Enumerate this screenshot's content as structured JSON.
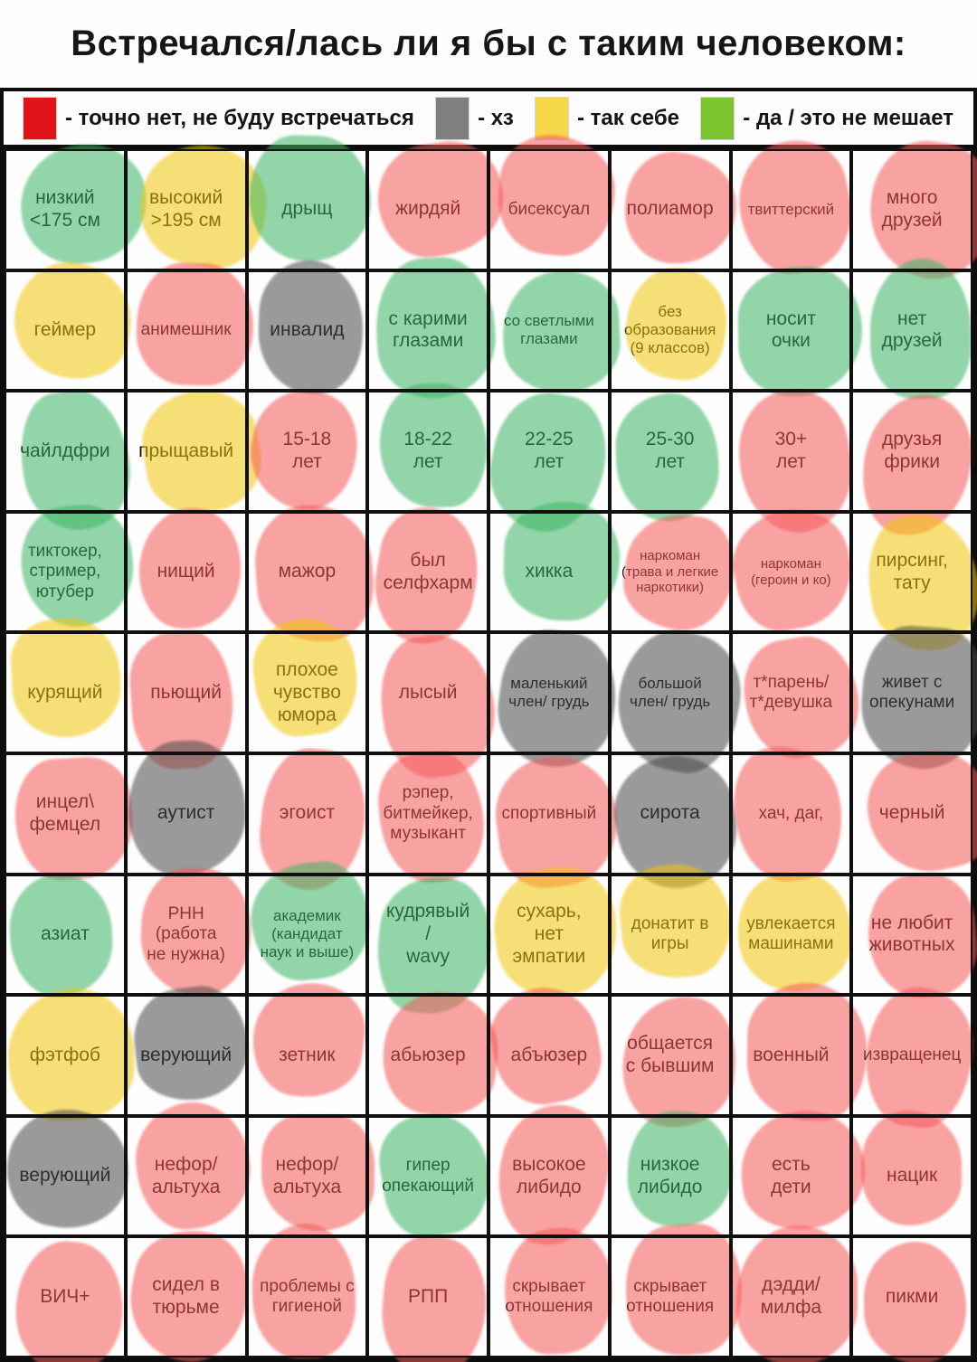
{
  "title": "Встречался/лась ли я бы с таким человеком:",
  "legend": [
    {
      "key": "no",
      "label": "- точно нет, не буду встречаться",
      "color": "#e01418"
    },
    {
      "key": "idk",
      "label": "- хз",
      "color": "#808080"
    },
    {
      "key": "meh",
      "label": "- так себе",
      "color": "#f5d74a"
    },
    {
      "key": "yes",
      "label": "- да / это не мешает",
      "color": "#7cc52f"
    }
  ],
  "verdict_blob_colors": {
    "no": "rgba(246, 88, 88, 0.55)",
    "idk": "rgba(72, 72, 72, 0.55)",
    "meh": "rgba(242, 198, 10, 0.55)",
    "yes": "rgba(58, 180, 98, 0.55)"
  },
  "grid": {
    "columns": 8,
    "rows": 10,
    "cells": [
      {
        "label": "низкий\n<175 см",
        "verdict": "yes"
      },
      {
        "label": "высокий\n>195 см",
        "verdict": "meh"
      },
      {
        "label": "дрыщ",
        "verdict": "yes"
      },
      {
        "label": "жирдяй",
        "verdict": "no"
      },
      {
        "label": "бисексуал",
        "verdict": "no"
      },
      {
        "label": "полиамор",
        "verdict": "no"
      },
      {
        "label": "твиттерский",
        "verdict": "no"
      },
      {
        "label": "много\nдрузей",
        "verdict": "no"
      },
      {
        "label": "геймер",
        "verdict": "meh"
      },
      {
        "label": "анимешник",
        "verdict": "no"
      },
      {
        "label": "инвалид",
        "verdict": "idk"
      },
      {
        "label": "с карими\nглазами",
        "verdict": "yes"
      },
      {
        "label": "со светлыми\nглазами",
        "verdict": "yes"
      },
      {
        "label": "без\nобразования\n(9 классов)",
        "verdict": "meh"
      },
      {
        "label": "носит\nочки",
        "verdict": "yes"
      },
      {
        "label": "нет\nдрузей",
        "verdict": "yes"
      },
      {
        "label": "чайлдфри",
        "verdict": "yes"
      },
      {
        "label": "прыщавый",
        "verdict": "meh"
      },
      {
        "label": "15-18\nлет",
        "verdict": "no"
      },
      {
        "label": "18-22\nлет",
        "verdict": "yes"
      },
      {
        "label": "22-25\nлет",
        "verdict": "yes"
      },
      {
        "label": "25-30\nлет",
        "verdict": "yes"
      },
      {
        "label": "30+\nлет",
        "verdict": "no"
      },
      {
        "label": "друзья\nфрики",
        "verdict": "no"
      },
      {
        "label": "тиктокер,\nстример,\nютубер",
        "verdict": "yes"
      },
      {
        "label": "нищий",
        "verdict": "no"
      },
      {
        "label": "мажор",
        "verdict": "no"
      },
      {
        "label": "был\nселфхарм",
        "verdict": "no"
      },
      {
        "label": "хикка",
        "verdict": "yes"
      },
      {
        "label": "наркоман\n(трава и легкие\nнаркотики)",
        "verdict": "no"
      },
      {
        "label": "наркоман\n(героин и ко)",
        "verdict": "no"
      },
      {
        "label": "пирсинг,\nтату",
        "verdict": "meh"
      },
      {
        "label": "курящий",
        "verdict": "meh"
      },
      {
        "label": "пьющий",
        "verdict": "no"
      },
      {
        "label": "плохое\nчувство\nюмора",
        "verdict": "meh"
      },
      {
        "label": "лысый",
        "verdict": "no"
      },
      {
        "label": "маленький\nчлен/ грудь",
        "verdict": "idk"
      },
      {
        "label": "большой\nчлен/ грудь",
        "verdict": "idk"
      },
      {
        "label": "т*парень/\nт*девушка",
        "verdict": "no"
      },
      {
        "label": "живет с\nопекунами",
        "verdict": "idk"
      },
      {
        "label": "инцел\\\nфемцел",
        "verdict": "no"
      },
      {
        "label": "аутист",
        "verdict": "idk"
      },
      {
        "label": "эгоист",
        "verdict": "no"
      },
      {
        "label": "рэпер,\nбитмейкер,\nмузыкант",
        "verdict": "no"
      },
      {
        "label": "спортивный",
        "verdict": "no"
      },
      {
        "label": "сирота",
        "verdict": "idk"
      },
      {
        "label": "хач, даг,",
        "verdict": "no"
      },
      {
        "label": "черный",
        "verdict": "no"
      },
      {
        "label": "азиат",
        "verdict": "yes"
      },
      {
        "label": "РНН\n(работа\nне нужна)",
        "verdict": "no"
      },
      {
        "label": "академик\n(кандидат\nнаук и выше)",
        "verdict": "yes"
      },
      {
        "label": "кудрявый\n/\nwavy",
        "verdict": "yes"
      },
      {
        "label": "сухарь,\nнет\nэмпатии",
        "verdict": "meh"
      },
      {
        "label": "донатит в\nигры",
        "verdict": "meh"
      },
      {
        "label": "увлекается\nмашинами",
        "verdict": "meh"
      },
      {
        "label": "не любит\nживотных",
        "verdict": "no"
      },
      {
        "label": "фэтфоб",
        "verdict": "meh"
      },
      {
        "label": "верующий",
        "verdict": "idk"
      },
      {
        "label": "зетник",
        "verdict": "no"
      },
      {
        "label": "абьюзер",
        "verdict": "no"
      },
      {
        "label": "абъюзер",
        "verdict": "no"
      },
      {
        "label": "общается\nс бывшим",
        "verdict": "no"
      },
      {
        "label": "военный",
        "verdict": "no"
      },
      {
        "label": "извращенец",
        "verdict": "no"
      },
      {
        "label": "верующий",
        "verdict": "idk"
      },
      {
        "label": "нефор/\nальтуха",
        "verdict": "no"
      },
      {
        "label": "нефор/\nальтуха",
        "verdict": "no"
      },
      {
        "label": "гипер\nопекающий",
        "verdict": "yes"
      },
      {
        "label": "высокое\nлибидо",
        "verdict": "no"
      },
      {
        "label": "низкое\nлибидо",
        "verdict": "yes"
      },
      {
        "label": "есть\nдети",
        "verdict": "no"
      },
      {
        "label": "нацик",
        "verdict": "no"
      },
      {
        "label": "ВИЧ+",
        "verdict": "no"
      },
      {
        "label": "сидел в\nтюрьме",
        "verdict": "no"
      },
      {
        "label": "проблемы с\nгигиеной",
        "verdict": "no"
      },
      {
        "label": "РПП",
        "verdict": "no"
      },
      {
        "label": "скрывает\nотношения",
        "verdict": "no"
      },
      {
        "label": "скрывает\nотношения",
        "verdict": "no"
      },
      {
        "label": "дэдди/\nмилфа",
        "verdict": "no"
      },
      {
        "label": "пикми",
        "verdict": "no"
      }
    ]
  }
}
